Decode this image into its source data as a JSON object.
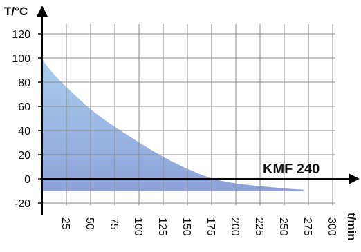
{
  "chart_data": {
    "type": "area",
    "ylabel": "T/°C",
    "xlabel": "t/min",
    "annotation": "KMF 240",
    "xlim": [
      0,
      310
    ],
    "ylim": [
      -22,
      128
    ],
    "x_ticks": [
      25,
      50,
      75,
      100,
      125,
      150,
      175,
      200,
      225,
      250,
      275,
      300
    ],
    "y_ticks": [
      120,
      100,
      80,
      60,
      40,
      20,
      0,
      -20
    ],
    "grid": true,
    "baseline": -10,
    "series": [
      {
        "x": [
          0,
          10,
          25,
          50,
          75,
          100,
          125,
          150,
          175,
          200,
          225,
          250,
          270
        ],
        "y": [
          99,
          88,
          76,
          57,
          43,
          30,
          18,
          8,
          0,
          -4,
          -6,
          -8,
          -9
        ]
      }
    ],
    "colors": {
      "fill_top": "#a9cdec",
      "fill_bottom": "#8ea2d9",
      "grid": "#8a8a8a",
      "axis": "#000000"
    }
  }
}
